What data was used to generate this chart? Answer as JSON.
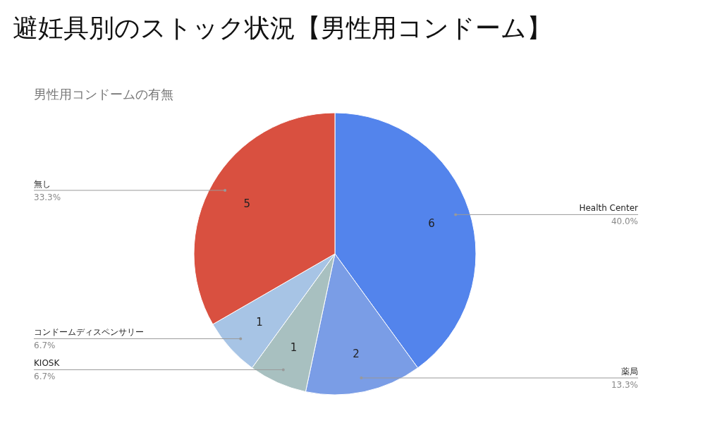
{
  "chart_data": {
    "type": "pie",
    "title": "避妊具別のストック状況【男性用コンドーム】",
    "subtitle": "男性用コンドームの有無",
    "categories": [
      "Health Center",
      "薬局",
      "KIOSK",
      "コンドームディスペンサリー",
      "無し"
    ],
    "values": [
      6,
      2,
      1,
      1,
      5
    ],
    "colors": [
      "#5384ec",
      "#7a9de6",
      "#a8c0c0",
      "#a7c4e5",
      "#d95040"
    ],
    "data_labels": true,
    "annotations": [
      "40.0%",
      "13.3%",
      "6.7%",
      "6.7%",
      "33.3%"
    ]
  }
}
